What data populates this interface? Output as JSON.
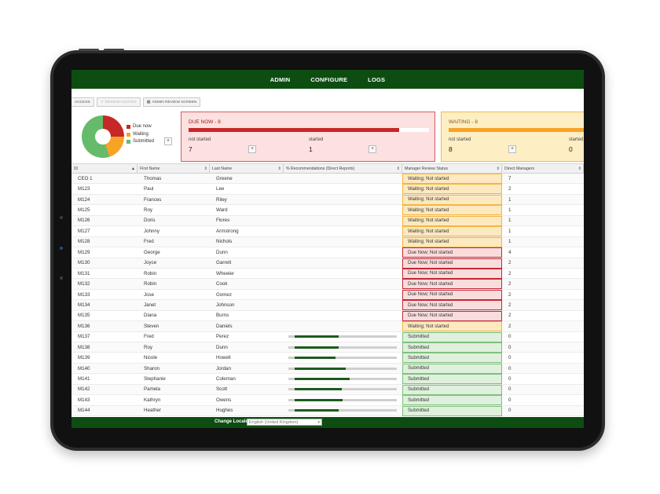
{
  "nav": {
    "items": [
      "ADMIN",
      "CONFIGURE",
      "LOGS"
    ]
  },
  "toolbar": {
    "access_label": "ACCESS",
    "resend_label": "RESEND INVITES",
    "review_label": "ADMIN REVIEW SCREEN"
  },
  "status_chart": {
    "legend": [
      "Due now",
      "Waiting",
      "Submitted"
    ],
    "colors": [
      "#c62828",
      "#f7a325",
      "#66bb6a"
    ],
    "counts": [
      8,
      8,
      16
    ]
  },
  "cards": {
    "due": {
      "title": "DUE NOW - 8",
      "not_started_label": "not started",
      "started_label": "started",
      "not_started": "7",
      "started": "1",
      "progress": 0.875
    },
    "waiting": {
      "title": "WAITING - 8",
      "not_started_label": "not started",
      "started_label": "started",
      "not_started": "8",
      "started": "0",
      "progress": 1.0
    }
  },
  "table": {
    "headers": [
      "ID",
      "First Name",
      "Last Name",
      "% Recommendations (Direct Reports)",
      "Manager Review Status",
      "Direct Managers"
    ],
    "rows": [
      {
        "id": "CEO 1",
        "first": "Thomas",
        "last": "Greene",
        "status": "Waiting; Not started",
        "kind": "w",
        "dm": "7",
        "pct": null
      },
      {
        "id": "M123",
        "first": "Paul",
        "last": "Lee",
        "status": "Waiting; Not started",
        "kind": "w",
        "dm": "2",
        "pct": null
      },
      {
        "id": "M124",
        "first": "Frances",
        "last": "Riley",
        "status": "Waiting; Not started",
        "kind": "w",
        "dm": "1",
        "pct": null
      },
      {
        "id": "M125",
        "first": "Roy",
        "last": "Ward",
        "status": "Waiting; Not started",
        "kind": "w",
        "dm": "1",
        "pct": null
      },
      {
        "id": "M126",
        "first": "Doris",
        "last": "Flores",
        "status": "Waiting; Not started",
        "kind": "w",
        "dm": "1",
        "pct": null
      },
      {
        "id": "M127",
        "first": "Johnny",
        "last": "Armstrong",
        "status": "Waiting; Not started",
        "kind": "w",
        "dm": "1",
        "pct": null
      },
      {
        "id": "M128",
        "first": "Fred",
        "last": "Nichols",
        "status": "Waiting; Not started",
        "kind": "w",
        "dm": "1",
        "pct": null
      },
      {
        "id": "M129",
        "first": "George",
        "last": "Dunn",
        "status": "Due Now; Not started",
        "kind": "d",
        "dm": "4",
        "pct": null
      },
      {
        "id": "M130",
        "first": "Joyce",
        "last": "Garrett",
        "status": "Due Now; Not started",
        "kind": "d",
        "dm": "2",
        "pct": null
      },
      {
        "id": "M131",
        "first": "Robin",
        "last": "Wheeler",
        "status": "Due Now; Not started",
        "kind": "d",
        "dm": "2",
        "pct": null
      },
      {
        "id": "M132",
        "first": "Robin",
        "last": "Cook",
        "status": "Due Now; Not started",
        "kind": "d",
        "dm": "2",
        "pct": null
      },
      {
        "id": "M133",
        "first": "Jose",
        "last": "Gomez",
        "status": "Due Now; Not started",
        "kind": "d",
        "dm": "2",
        "pct": null
      },
      {
        "id": "M134",
        "first": "Janet",
        "last": "Johnson",
        "status": "Due Now; Not started",
        "kind": "d",
        "dm": "2",
        "pct": null
      },
      {
        "id": "M135",
        "first": "Diana",
        "last": "Burns",
        "status": "Due Now; Not started",
        "kind": "d",
        "dm": "2",
        "pct": null
      },
      {
        "id": "M136",
        "first": "Steven",
        "last": "Daniels",
        "status": "Waiting; Not started",
        "kind": "w",
        "dm": "2",
        "pct": null
      },
      {
        "id": "M137",
        "first": "Fred",
        "last": "Perez",
        "status": "Submitted",
        "kind": "s",
        "dm": "0",
        "pct": 0.43
      },
      {
        "id": "M138",
        "first": "Roy",
        "last": "Dunn",
        "status": "Submitted",
        "kind": "s",
        "dm": "0",
        "pct": 0.43
      },
      {
        "id": "M139",
        "first": "Nicole",
        "last": "Howell",
        "status": "Submitted",
        "kind": "s",
        "dm": "0",
        "pct": 0.4
      },
      {
        "id": "M140",
        "first": "Sharon",
        "last": "Jordan",
        "status": "Submitted",
        "kind": "s",
        "dm": "0",
        "pct": 0.5
      },
      {
        "id": "M141",
        "first": "Stephanie",
        "last": "Coleman",
        "status": "Submitted",
        "kind": "s",
        "dm": "0",
        "pct": 0.54
      },
      {
        "id": "M142",
        "first": "Pamela",
        "last": "Scott",
        "status": "Submitted",
        "kind": "s",
        "dm": "0",
        "pct": 0.46
      },
      {
        "id": "M143",
        "first": "Kathryn",
        "last": "Owens",
        "status": "Submitted",
        "kind": "s",
        "dm": "0",
        "pct": 0.47
      },
      {
        "id": "M144",
        "first": "Heather",
        "last": "Hughes",
        "status": "Submitted",
        "kind": "s",
        "dm": "0",
        "pct": 0.43
      }
    ]
  },
  "footer": {
    "locale_label": "Change Locale",
    "locale_value": "English (United Kingdom)"
  }
}
